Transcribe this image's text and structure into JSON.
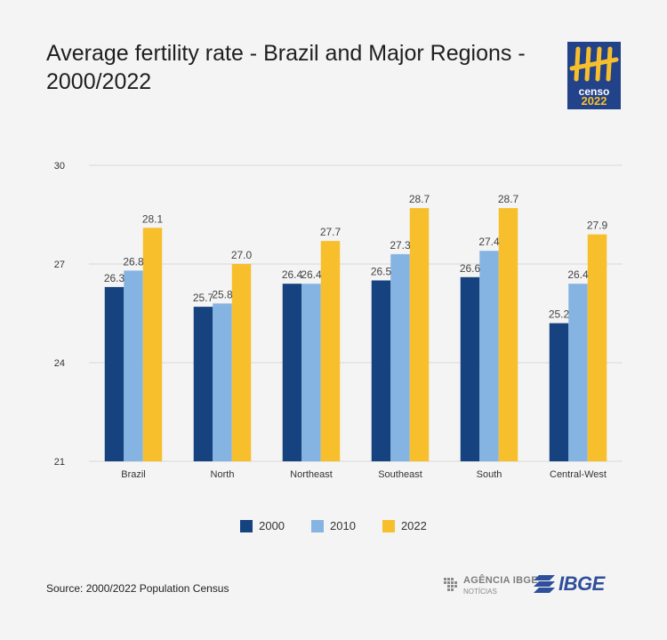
{
  "header": {
    "title": "Average fertility rate - Brazil and Major Regions - 2000/2022"
  },
  "logos": {
    "censo_line1": "censo",
    "censo_line2": "2022",
    "agencia_line1": "AGÊNCIA IBGE",
    "agencia_line2": "NOTÍCIAS",
    "ibge": "IBGE"
  },
  "footer": {
    "source": "Source: 2000/2022 Population Census"
  },
  "colors": {
    "2000": "#16427f",
    "2010": "#86b4e2",
    "2022": "#f7bf2c",
    "grid": "#d7d7d7",
    "background": "#f4f4f4"
  },
  "chart_data": {
    "type": "bar",
    "title": "Average fertility rate - Brazil and Major Regions - 2000/2022",
    "xlabel": "",
    "ylabel": "",
    "categories": [
      "Brazil",
      "North",
      "Northeast",
      "Southeast",
      "South",
      "Central-West"
    ],
    "series": [
      {
        "name": "2000",
        "values": [
          26.3,
          25.7,
          26.4,
          26.5,
          26.6,
          25.2
        ]
      },
      {
        "name": "2010",
        "values": [
          26.8,
          25.8,
          26.4,
          27.3,
          27.4,
          26.4
        ]
      },
      {
        "name": "2022",
        "values": [
          28.1,
          27.0,
          27.7,
          28.7,
          28.7,
          27.9
        ]
      }
    ],
    "ylim": [
      21,
      30
    ],
    "yticks": [
      "21",
      "24",
      "27",
      "30"
    ],
    "grid": true,
    "legend": "bottom-center"
  }
}
